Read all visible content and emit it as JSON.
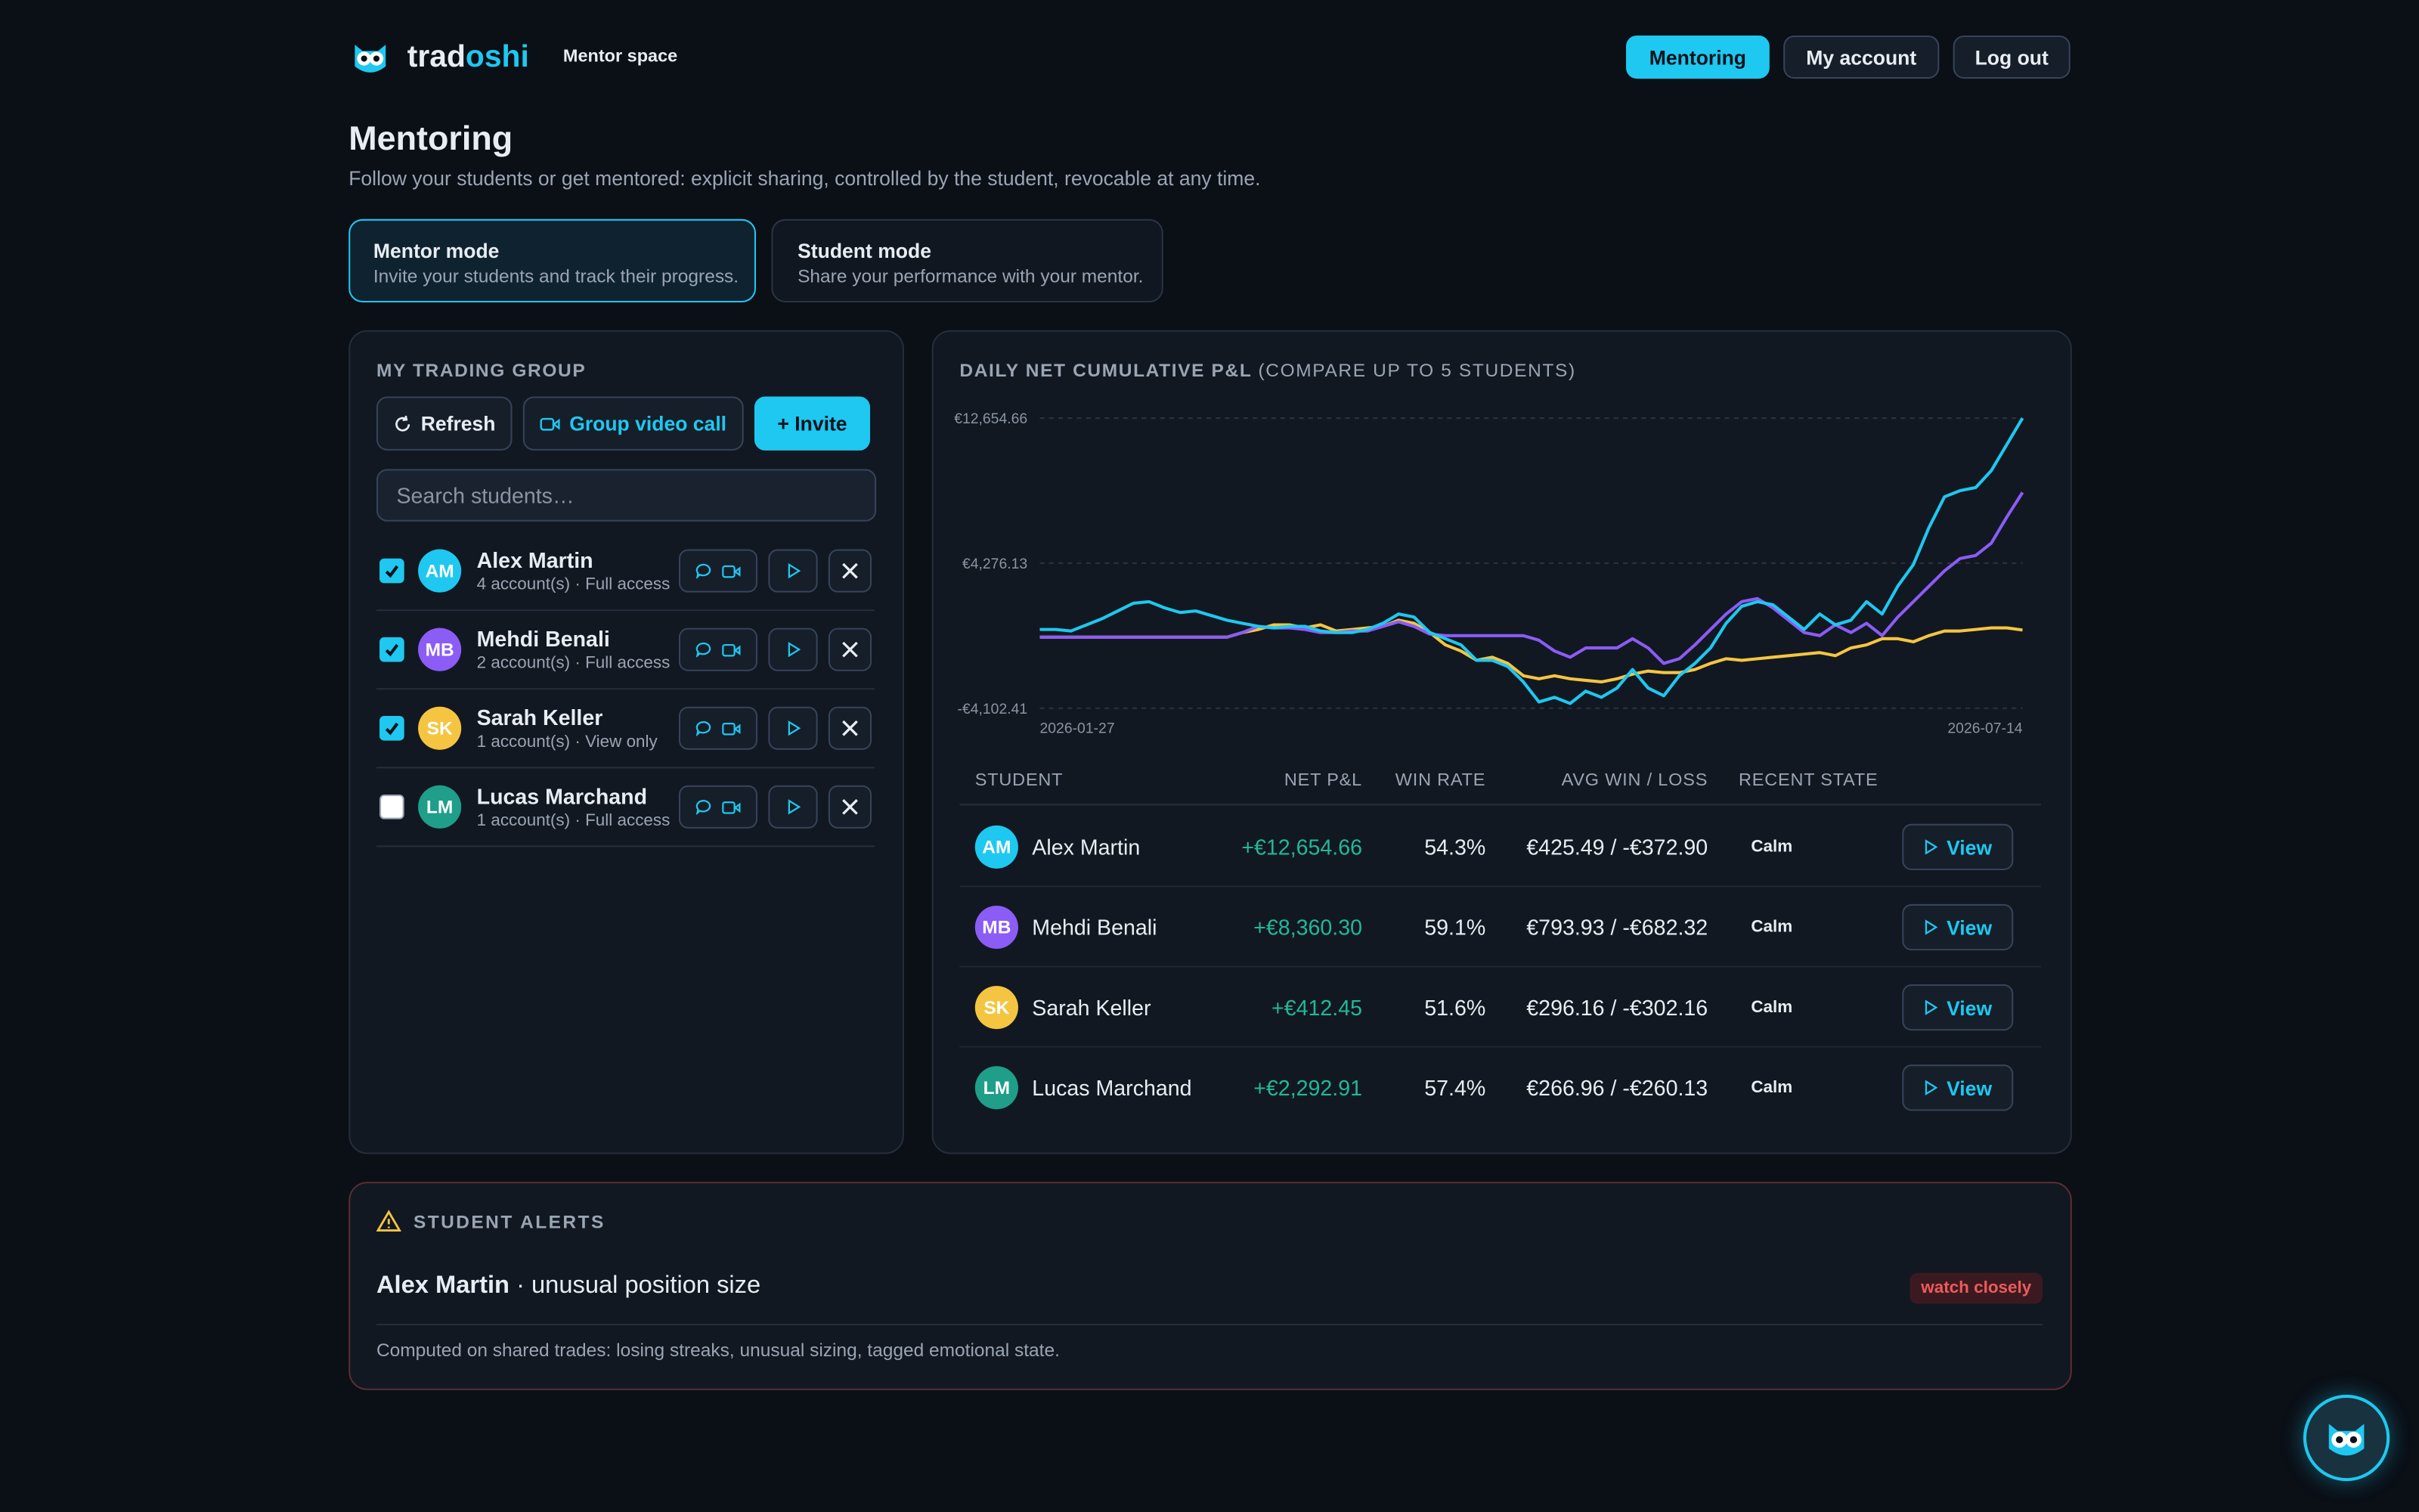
{
  "header": {
    "brand_a": "trad",
    "brand_b": "oshi",
    "section": "Mentor space",
    "nav": [
      "Mentoring",
      "My account",
      "Log out"
    ]
  },
  "page": {
    "title": "Mentoring",
    "subtitle": "Follow your students or get mentored: explicit sharing, controlled by the student, revocable at any time."
  },
  "modes": [
    {
      "title": "Mentor mode",
      "description": "Invite your students and track their progress."
    },
    {
      "title": "Student mode",
      "description": "Share your performance with your mentor."
    }
  ],
  "group": {
    "title": "MY TRADING GROUP",
    "buttons": [
      "Refresh",
      "Group video call",
      "+ Invite"
    ],
    "search_placeholder": "Search students…",
    "students": [
      {
        "initials": "AM",
        "name": "Alex Martin",
        "meta": "4 account(s) · Full access",
        "checked": true,
        "color": "#1ec8f0"
      },
      {
        "initials": "MB",
        "name": "Mehdi Benali",
        "meta": "2 account(s) · Full access",
        "checked": true,
        "color": "#8b5cf6"
      },
      {
        "initials": "SK",
        "name": "Sarah Keller",
        "meta": "1 account(s) · View only",
        "checked": true,
        "color": "#f5c542"
      },
      {
        "initials": "LM",
        "name": "Lucas Marchand",
        "meta": "1 account(s) · Full access",
        "checked": false,
        "color": "#1f9e8a"
      }
    ]
  },
  "chart_data": {
    "type": "line",
    "title": "DAILY NET CUMULATIVE P&L",
    "subtitle": "(COMPARE UP TO 5 STUDENTS)",
    "categories": [
      "2026-01-27",
      null,
      null,
      null,
      null,
      null,
      null,
      null,
      null,
      null,
      null,
      null,
      null,
      null,
      null,
      null,
      null,
      null,
      null,
      null,
      null,
      null,
      null,
      null,
      null,
      null,
      null,
      null,
      null,
      null,
      null,
      null,
      null,
      null,
      null,
      null,
      null,
      null,
      null,
      null,
      null,
      null,
      null,
      null,
      null,
      null,
      null,
      null,
      null,
      null,
      null,
      null,
      null,
      null,
      null,
      null,
      null,
      null,
      null,
      null,
      null,
      null,
      null,
      "2026-07-14"
    ],
    "ylim": [
      -4102.41,
      12654.66
    ],
    "yticks": [
      {
        "value": 12654.66,
        "label": "€12,654.66"
      },
      {
        "value": 4276.13,
        "label": "€4,276.13"
      },
      {
        "value": -4102.41,
        "label": "-€4,102.41"
      }
    ],
    "grid": true,
    "series": [
      {
        "color": "#1ec8f0",
        "values": [
          445,
          445,
          356,
          713,
          1069,
          1515,
          1960,
          2049,
          1693,
          1426,
          1515,
          1247,
          980,
          802,
          624,
          535,
          624,
          624,
          356,
          267,
          267,
          445,
          802,
          1337,
          1158,
          267,
          -89,
          -445,
          -1337,
          -1337,
          -1693,
          -2584,
          -3742,
          -3475,
          -3831,
          -3119,
          -3475,
          -2940,
          -1871,
          -2940,
          -3386,
          -2227,
          -1515,
          -624,
          802,
          1782,
          2049,
          1871,
          1158,
          445,
          1337,
          713,
          980,
          2049,
          1337,
          2940,
          4188,
          6326,
          8108,
          8465,
          8643,
          9623,
          11138,
          12654.66
        ]
      },
      {
        "color": "#8b5cf6",
        "values": [
          0,
          0,
          0,
          0,
          0,
          0,
          0,
          0,
          0,
          0,
          0,
          0,
          0,
          267,
          624,
          535,
          535,
          445,
          267,
          267,
          356,
          356,
          624,
          891,
          624,
          178,
          89,
          89,
          89,
          89,
          89,
          89,
          -178,
          -802,
          -1158,
          -624,
          -624,
          -624,
          -89,
          -624,
          -1515,
          -1247,
          -445,
          445,
          1337,
          2049,
          2228,
          1693,
          980,
          267,
          89,
          713,
          267,
          802,
          89,
          1158,
          2049,
          2940,
          3831,
          4544,
          4722,
          5435,
          6950,
          8360.3
        ]
      },
      {
        "color": "#f5c542",
        "values": [
          0,
          0,
          0,
          0,
          0,
          0,
          0,
          0,
          0,
          0,
          0,
          0,
          0,
          267,
          445,
          713,
          713,
          535,
          713,
          356,
          445,
          535,
          624,
          980,
          802,
          267,
          -445,
          -802,
          -1337,
          -1158,
          -1515,
          -2228,
          -2406,
          -2228,
          -2406,
          -2495,
          -2584,
          -2406,
          -2138,
          -1960,
          -2049,
          -2049,
          -1871,
          -1515,
          -1247,
          -1337,
          -1247,
          -1158,
          -1069,
          -980,
          -891,
          -1069,
          -624,
          -445,
          -89,
          -89,
          -267,
          89,
          356,
          356,
          445,
          535,
          535,
          412.45
        ]
      }
    ]
  },
  "table": {
    "columns": [
      "STUDENT",
      "NET P&L",
      "WIN RATE",
      "AVG WIN / LOSS",
      "RECENT STATE"
    ],
    "rows": [
      {
        "initials": "AM",
        "color": "#1ec8f0",
        "name": "Alex Martin",
        "net_pnl": "+€12,654.66",
        "win_rate": "54.3%",
        "avg_win_loss": "€425.49 / -€372.90",
        "state": "Calm",
        "action": "View"
      },
      {
        "initials": "MB",
        "color": "#8b5cf6",
        "name": "Mehdi Benali",
        "net_pnl": "+€8,360.30",
        "win_rate": "59.1%",
        "avg_win_loss": "€793.93 / -€682.32",
        "state": "Calm",
        "action": "View"
      },
      {
        "initials": "SK",
        "color": "#f5c542",
        "name": "Sarah Keller",
        "net_pnl": "+€412.45",
        "win_rate": "51.6%",
        "avg_win_loss": "€296.16 / -€302.16",
        "state": "Calm",
        "action": "View"
      },
      {
        "initials": "LM",
        "color": "#1f9e8a",
        "name": "Lucas Marchand",
        "net_pnl": "+€2,292.91",
        "win_rate": "57.4%",
        "avg_win_loss": "€266.96 / -€260.13",
        "state": "Calm",
        "action": "View"
      }
    ]
  },
  "alerts": {
    "title": "STUDENT ALERTS",
    "items": [
      {
        "student": "Alex Martin",
        "text": "· unusual position size",
        "badge": "watch closely"
      }
    ],
    "footnote": "Computed on shared trades: losing streaks, unusual sizing, tagged emotional state."
  }
}
